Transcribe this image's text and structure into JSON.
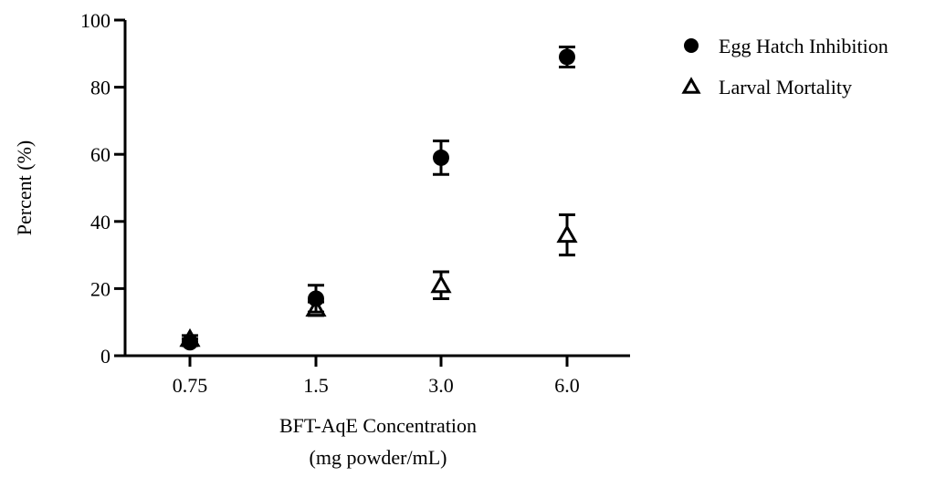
{
  "chart_data": {
    "type": "scatter",
    "title": "",
    "categories": [
      "0.75",
      "1.5",
      "3.0",
      "6.0"
    ],
    "xlabel": [
      "BFT-AqE Concentration",
      "(mg powder/mL)"
    ],
    "ylabel": "Percent  (%)",
    "ylim": [
      0,
      100
    ],
    "yticks": [
      0,
      20,
      40,
      60,
      80,
      100
    ],
    "grid": false,
    "legend_position": "top-right",
    "series": [
      {
        "name": "Egg Hatch Inhibition",
        "marker": "circle-filled",
        "values": [
          4,
          17,
          59,
          89
        ],
        "err": [
          1,
          4,
          5,
          3
        ]
      },
      {
        "name": "Larval Mortality",
        "marker": "triangle-open",
        "values": [
          5,
          14,
          21,
          36
        ],
        "err": [
          1,
          2,
          4,
          6
        ]
      }
    ]
  }
}
